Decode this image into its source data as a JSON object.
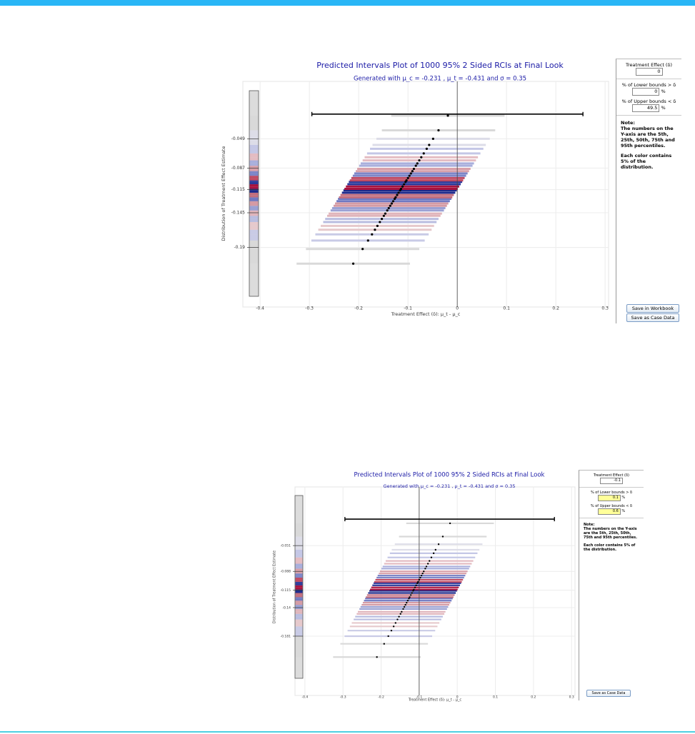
{
  "chart_data": [
    {
      "type": "interval",
      "title": "Predicted Intervals Plot of 1000 95% 2 Sided RCIs at Final Look",
      "subtitle": "Generated with μ_c = -0.231 , μ_t = -0.431 and σ = 0.35",
      "x_label": "Treatment Effect (δ): μ_t - μ_c",
      "y_label": "Distribution of Treatment Effect Estimate",
      "xlim": [
        -0.435,
        0.307
      ],
      "xticks": [
        -0.4,
        -0.3,
        -0.2,
        -0.1,
        0,
        0.1,
        0.2,
        0.3
      ],
      "ylim": [
        -0.258,
        0.018
      ],
      "yticks": [
        -0.19,
        -0.145,
        -0.115,
        -0.087,
        -0.049
      ],
      "grid": true,
      "delta": 0,
      "half_width": 0.115,
      "reference_interval": {
        "lower": -0.295,
        "upper": 0.255,
        "y": -0.017
      },
      "estimates": [
        -0.211,
        -0.192,
        -0.181,
        -0.173,
        -0.167,
        -0.162,
        -0.157,
        -0.153,
        -0.149,
        -0.146,
        -0.142,
        -0.139,
        -0.136,
        -0.133,
        -0.13,
        -0.127,
        -0.125,
        -0.122,
        -0.119,
        -0.116,
        -0.114,
        -0.111,
        -0.108,
        -0.105,
        -0.103,
        -0.1,
        -0.097,
        -0.094,
        -0.091,
        -0.088,
        -0.084,
        -0.081,
        -0.077,
        -0.073,
        -0.068,
        -0.062,
        -0.057,
        -0.049,
        -0.038,
        -0.019
      ],
      "colors": [
        "#d9d9d9",
        "#d9d9d9",
        "#c9cbe6",
        "#c9cbe6",
        "#e6c9cc",
        "#e6c9cc",
        "#b9bde0",
        "#b9bde0",
        "#e0b5bb",
        "#e0b5bb",
        "#9aa1d4",
        "#9aa1d4",
        "#d49aa4",
        "#d49aa4",
        "#6e78c2",
        "#6e78c2",
        "#c26e7e",
        "#c26e7e",
        "#1c2a8c",
        "#1c2a8c",
        "#a8123e",
        "#a8123e",
        "#2a389a",
        "#2a389a",
        "#c04a62",
        "#c04a62",
        "#7d86c8",
        "#7d86c8",
        "#d8a0aa",
        "#d8a0aa",
        "#a9afdc",
        "#a9afdc",
        "#e4bcc2",
        "#e4bcc2",
        "#c4c7e6",
        "#c4c7e6",
        "#dddde8",
        "#dddde8",
        "#d9d9d9",
        "#d9d9d9"
      ]
    },
    {
      "type": "interval",
      "title": "Predicted Intervals Plot of 1000 95% 2 Sided RCIs at Final Look",
      "subtitle": "Generated with μ_c = -0.231 , μ_t = -0.431 and σ = 0.35",
      "x_label": "Treatment Effect (δ): μ_t - μ_c",
      "y_label": "Distribution of Treatment Effect Estimate",
      "xlim": [
        -0.426,
        0.309
      ],
      "xticks": [
        -0.4,
        -0.3,
        -0.2,
        -0.1,
        0,
        0.1,
        0.2,
        0.3
      ],
      "ylim": [
        -0.262,
        0.025
      ],
      "yticks": [
        -0.181,
        -0.14,
        -0.115,
        -0.088,
        -0.051
      ],
      "grid": true,
      "delta": -0.1,
      "half_width": 0.115,
      "reference_interval": {
        "lower": -0.295,
        "upper": 0.255,
        "y": -0.013
      },
      "estimates": [
        -0.211,
        -0.192,
        -0.181,
        -0.173,
        -0.167,
        -0.162,
        -0.157,
        -0.153,
        -0.149,
        -0.146,
        -0.142,
        -0.139,
        -0.136,
        -0.133,
        -0.13,
        -0.127,
        -0.125,
        -0.122,
        -0.119,
        -0.116,
        -0.114,
        -0.111,
        -0.108,
        -0.105,
        -0.103,
        -0.1,
        -0.097,
        -0.094,
        -0.091,
        -0.088,
        -0.084,
        -0.081,
        -0.077,
        -0.073,
        -0.068,
        -0.062,
        -0.057,
        -0.049,
        -0.038,
        -0.019
      ],
      "colors": [
        "#d9d9d9",
        "#d9d9d9",
        "#c9cbe6",
        "#c9cbe6",
        "#e6c9cc",
        "#e6c9cc",
        "#b9bde0",
        "#b9bde0",
        "#e0b5bb",
        "#e0b5bb",
        "#9aa1d4",
        "#9aa1d4",
        "#d49aa4",
        "#d49aa4",
        "#6e78c2",
        "#6e78c2",
        "#c26e7e",
        "#c26e7e",
        "#1c2a8c",
        "#1c2a8c",
        "#a8123e",
        "#a8123e",
        "#2a389a",
        "#2a389a",
        "#c04a62",
        "#c04a62",
        "#7d86c8",
        "#7d86c8",
        "#d8a0aa",
        "#d8a0aa",
        "#a9afdc",
        "#a9afdc",
        "#e4bcc2",
        "#e4bcc2",
        "#c4c7e6",
        "#c4c7e6",
        "#dddde8",
        "#dddde8",
        "#d9d9d9",
        "#d9d9d9"
      ]
    }
  ],
  "panels": [
    {
      "delta_label": "Treatment Effect (δ)",
      "delta_value": 0,
      "lower_label": "% of Lower bounds > δ",
      "lower_value": 0,
      "upper_label": "% of Upper bounds < δ",
      "upper_value": 49.5,
      "unit": "%",
      "note_title": "Note:",
      "note_1": "The numbers on the Y-axis are the 5th, 25th, 50th, 75th and 95th percentiles.",
      "note_2": "Each color contains 5% of the distribution.",
      "buttons": [
        "Save in Workbook",
        "Save as Case Data"
      ]
    },
    {
      "delta_label": "Treatment Effect (δ)",
      "delta_value": -0.1,
      "lower_label": "% of Lower bounds > δ",
      "lower_value": 0.1,
      "upper_label": "% of Upper bounds < δ",
      "upper_value": 0.6,
      "unit": "%",
      "note_title": "Note:",
      "note_1": "The numbers on the Y-axis are the 5th, 25th, 50th, 75th and 95th percentiles.",
      "note_2": "Each color contains 5% of the distribution.",
      "buttons": [
        "Save as Case Data"
      ]
    }
  ]
}
